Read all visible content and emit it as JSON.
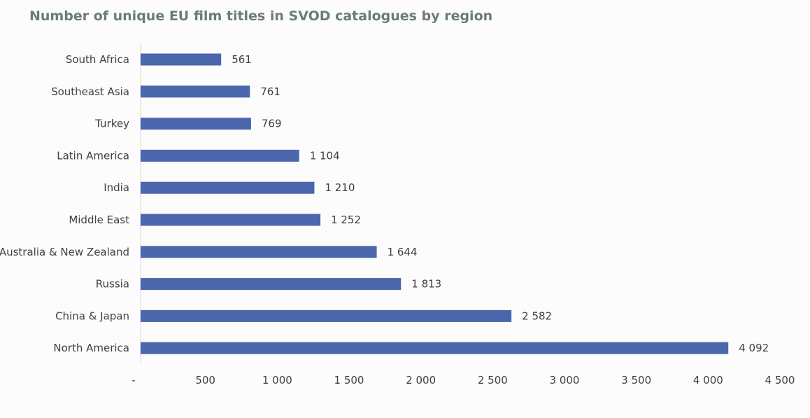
{
  "chart_data": {
    "type": "bar",
    "orientation": "horizontal",
    "title": "Number of unique EU film titles in SVOD catalogues by region",
    "categories": [
      "South Africa",
      "Southeast Asia",
      "Turkey",
      "Latin America",
      "India",
      "Middle East",
      "Australia & New Zealand",
      "Russia",
      "China & Japan",
      "North America"
    ],
    "values": [
      561,
      761,
      769,
      1104,
      1210,
      1252,
      1644,
      1813,
      2582,
      4092
    ],
    "value_labels": [
      "561",
      "761",
      "769",
      "1 104",
      "1 210",
      "1 252",
      "1 644",
      "1 813",
      "2 582",
      "4 092"
    ],
    "xlim": [
      0,
      4500
    ],
    "x_ticks": [
      0,
      500,
      1000,
      1500,
      2000,
      2500,
      3000,
      3500,
      4000,
      4500
    ],
    "x_tick_labels": [
      "-",
      "500",
      "1 000",
      "1 500",
      "2 000",
      "2 500",
      "3 000",
      "3 500",
      "4 000",
      "4 500"
    ],
    "xlabel": "",
    "ylabel": "",
    "grid": false,
    "legend": "none",
    "bar_color": "#4a66ac"
  }
}
